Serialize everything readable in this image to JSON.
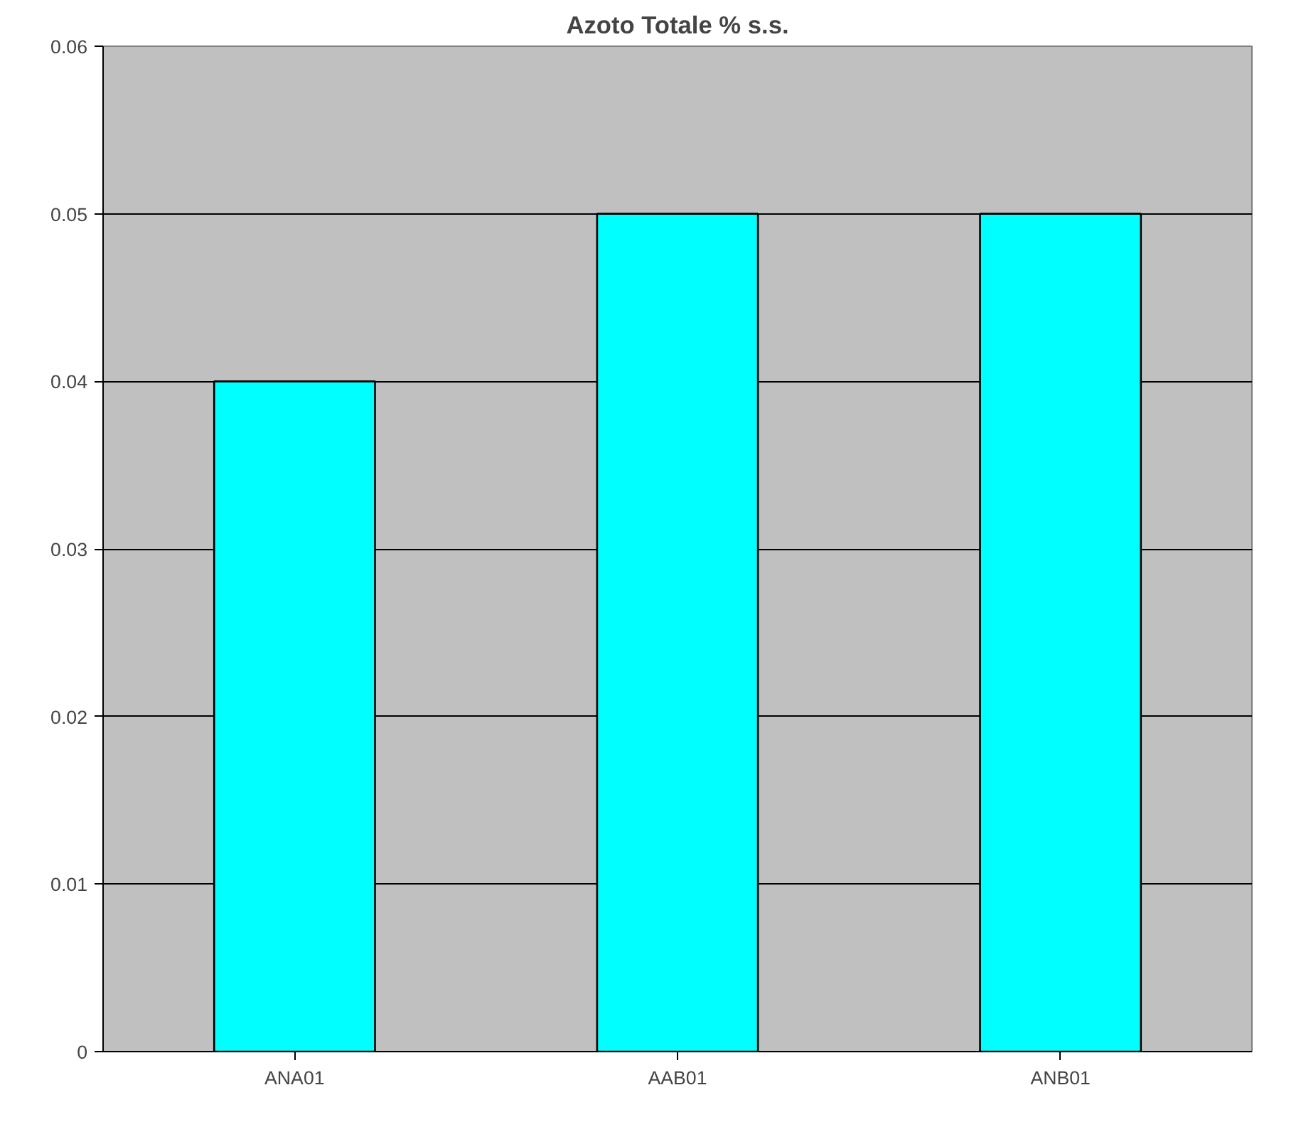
{
  "chart_data": {
    "type": "bar",
    "title": "Azoto Totale % s.s.",
    "categories": [
      "ANA01",
      "AAB01",
      "ANB01"
    ],
    "values": [
      0.04,
      0.05,
      0.05
    ],
    "color": "#00ffff",
    "ylim": [
      0,
      0.06
    ],
    "yticks": [
      {
        "value": 0,
        "label": "0"
      },
      0.01,
      0.02,
      0.03,
      0.04,
      0.05,
      0.06
    ],
    "grid": "y"
  }
}
